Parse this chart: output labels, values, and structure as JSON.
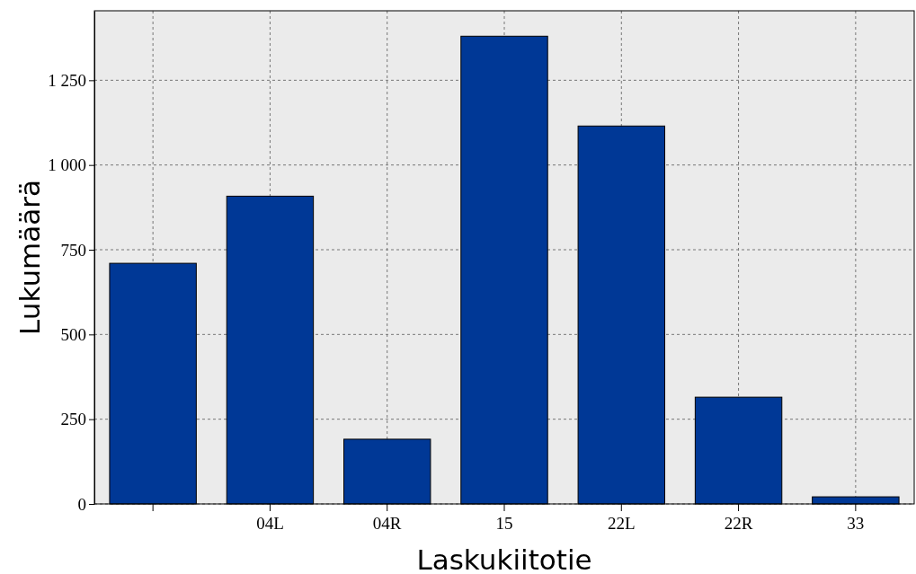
{
  "chart_data": {
    "type": "bar",
    "xlabel": "Laskukiitotie",
    "ylabel": "Lukumäärä",
    "categories": [
      null,
      "04L",
      "04R",
      "15",
      "22L",
      "22R",
      "33"
    ],
    "values": [
      710,
      908,
      191,
      1380,
      1115,
      315,
      21
    ],
    "color": "#003896",
    "ylim": [
      0,
      1455
    ],
    "yticks": [
      0,
      250,
      500,
      750,
      {
        "value": 1000,
        "label": "1 000"
      },
      {
        "value": 1250,
        "label": "1 250"
      }
    ],
    "grid": true
  }
}
